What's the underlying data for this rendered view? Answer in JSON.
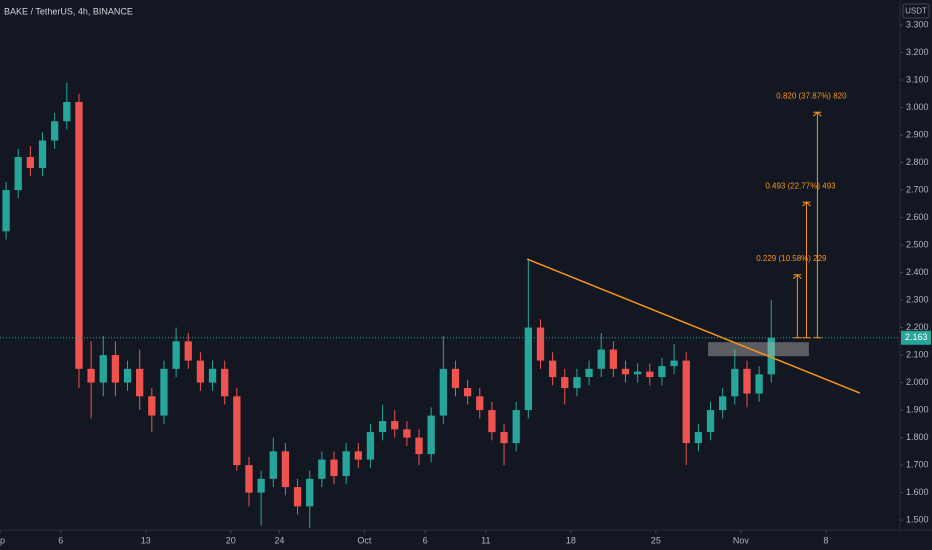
{
  "chart_data": {
    "type": "candlestick",
    "title": "BAKE / TetherUS, 4h, BINANCE",
    "currency": "USDT",
    "up_color": "#26a69a",
    "down_color": "#ef5350",
    "grid": false,
    "x": [
      0.5,
      1.5,
      2.5,
      3.5,
      4.5,
      5.5,
      6.5,
      7.5,
      8.5,
      9.5,
      10.5,
      11.5,
      12.5,
      13.5,
      14.5,
      15.5,
      16.5,
      17.5,
      18.5,
      19.5,
      20.5,
      21.5,
      22.5,
      23.5,
      24.5,
      25.5,
      26.5,
      27.5,
      28.5,
      29.5,
      30.5,
      31.5,
      32.5,
      33.5,
      34.5,
      35.5,
      36.5,
      37.5,
      38.5,
      39.5,
      40.5,
      41.5,
      42.5,
      43.5,
      44.5,
      45.5,
      46.5,
      47.5,
      48.5,
      49.5,
      50.5,
      51.5,
      52.5,
      53.5,
      54.5,
      55.5,
      56.5,
      57.5,
      58.5,
      59.5,
      60.5,
      61.5,
      62.5,
      63.5
    ],
    "open": [
      2.55,
      2.7,
      2.82,
      2.78,
      2.88,
      2.95,
      3.02,
      2.05,
      2.0,
      2.1,
      2.0,
      2.05,
      1.95,
      1.88,
      2.05,
      2.15,
      2.08,
      2.0,
      2.05,
      1.95,
      1.7,
      1.6,
      1.65,
      1.75,
      1.62,
      1.55,
      1.65,
      1.72,
      1.66,
      1.75,
      1.72,
      1.82,
      1.86,
      1.83,
      1.8,
      1.74,
      1.88,
      2.05,
      1.98,
      1.95,
      1.9,
      1.82,
      1.78,
      1.9,
      2.2,
      2.08,
      2.02,
      1.98,
      2.02,
      2.05,
      2.12,
      2.05,
      2.03,
      2.04,
      2.02,
      2.06,
      2.08,
      1.78,
      1.82,
      1.9,
      1.95,
      2.05,
      1.96,
      2.03
    ],
    "high": [
      2.73,
      2.85,
      2.86,
      2.91,
      2.98,
      3.09,
      3.05,
      2.15,
      2.17,
      2.15,
      2.08,
      2.12,
      1.98,
      2.08,
      2.2,
      2.18,
      2.11,
      2.08,
      2.08,
      1.98,
      1.73,
      1.68,
      1.8,
      1.78,
      1.65,
      1.68,
      1.75,
      1.75,
      1.78,
      1.78,
      1.85,
      1.92,
      1.9,
      1.86,
      1.83,
      1.91,
      2.17,
      2.08,
      2.01,
      1.98,
      1.93,
      1.85,
      1.93,
      2.45,
      2.23,
      2.11,
      2.05,
      2.05,
      2.08,
      2.18,
      2.15,
      2.08,
      2.07,
      2.07,
      2.09,
      2.14,
      2.11,
      1.85,
      1.93,
      1.98,
      2.12,
      2.08,
      2.06,
      2.3
    ],
    "low": [
      2.52,
      2.67,
      2.75,
      2.75,
      2.85,
      2.92,
      1.98,
      1.87,
      1.95,
      1.95,
      1.97,
      1.9,
      1.82,
      1.85,
      2.02,
      2.05,
      1.97,
      1.97,
      1.92,
      1.68,
      1.55,
      1.48,
      1.62,
      1.59,
      1.52,
      1.47,
      1.62,
      1.63,
      1.63,
      1.69,
      1.69,
      1.79,
      1.8,
      1.77,
      1.7,
      1.71,
      1.85,
      1.95,
      1.92,
      1.87,
      1.79,
      1.7,
      1.75,
      1.87,
      2.05,
      1.99,
      1.92,
      1.95,
      1.99,
      2.02,
      2.02,
      2.0,
      2.0,
      1.99,
      1.99,
      2.03,
      1.7,
      1.75,
      1.79,
      1.87,
      1.92,
      1.91,
      1.93,
      2.0
    ],
    "close": [
      2.7,
      2.82,
      2.78,
      2.88,
      2.95,
      3.02,
      2.05,
      2.0,
      2.1,
      2.0,
      2.05,
      1.95,
      1.88,
      2.05,
      2.15,
      2.08,
      2.0,
      2.05,
      1.95,
      1.7,
      1.6,
      1.65,
      1.75,
      1.62,
      1.55,
      1.65,
      1.72,
      1.66,
      1.75,
      1.72,
      1.82,
      1.86,
      1.83,
      1.8,
      1.74,
      1.88,
      2.05,
      1.98,
      1.95,
      1.9,
      1.82,
      1.78,
      1.9,
      2.2,
      2.08,
      2.02,
      1.98,
      2.02,
      2.05,
      2.12,
      2.05,
      2.03,
      2.04,
      2.02,
      2.06,
      2.08,
      1.78,
      1.82,
      1.9,
      1.95,
      2.05,
      1.96,
      2.03,
      2.163
    ],
    "xlim": [
      0,
      74.1
    ],
    "xticks": [
      {
        "value": 0,
        "label": "p"
      },
      {
        "value": 5,
        "label": "6"
      },
      {
        "value": 12,
        "label": "13"
      },
      {
        "value": 19,
        "label": "20"
      },
      {
        "value": 23,
        "label": "24"
      },
      {
        "value": 30,
        "label": "Oct"
      },
      {
        "value": 35,
        "label": "6"
      },
      {
        "value": 40,
        "label": "11"
      },
      {
        "value": 47,
        "label": "18"
      },
      {
        "value": 54,
        "label": "25"
      },
      {
        "value": 61,
        "label": "Nov"
      },
      {
        "value": 68,
        "label": "8"
      }
    ],
    "ylim": [
      1.464,
      3.391
    ],
    "yticks": [
      {
        "value": 1.5,
        "label": "1.500"
      },
      {
        "value": 1.6,
        "label": "1.600"
      },
      {
        "value": 1.7,
        "label": "1.700"
      },
      {
        "value": 1.8,
        "label": "1.800"
      },
      {
        "value": 1.9,
        "label": "1.900"
      },
      {
        "value": 2.0,
        "label": "2.000"
      },
      {
        "value": 2.1,
        "label": "2.100"
      },
      {
        "value": 2.2,
        "label": "2.200"
      },
      {
        "value": 2.3,
        "label": "2.300"
      },
      {
        "value": 2.4,
        "label": "2.400"
      },
      {
        "value": 2.5,
        "label": "2.500"
      },
      {
        "value": 2.6,
        "label": "2.600"
      },
      {
        "value": 2.7,
        "label": "2.700"
      },
      {
        "value": 2.8,
        "label": "2.800"
      },
      {
        "value": 2.9,
        "label": "2.900"
      },
      {
        "value": 3.0,
        "label": "3.000"
      },
      {
        "value": 3.1,
        "label": "3.100"
      },
      {
        "value": 3.2,
        "label": "3.200"
      },
      {
        "value": 3.3,
        "label": "3.300"
      }
    ],
    "last_price": {
      "value": 2.163,
      "label": "2.163",
      "color": "#26a69a"
    },
    "trendline": {
      "x": [
        43.4,
        70.8
      ],
      "y": [
        2.449,
        1.962
      ],
      "color": "#f7931a"
    },
    "zone": {
      "x": [
        58.3,
        66.6
      ],
      "y": [
        2.096,
        2.147
      ]
    },
    "target_color": "#f7931a",
    "targets": [
      {
        "label": "0.229 (10.58%) 229",
        "x": 65.65,
        "from": 2.163,
        "to": 2.392
      },
      {
        "label": "0.493 (22.77%) 493",
        "x": 66.4,
        "from": 2.163,
        "to": 2.656
      },
      {
        "label": "0.820 (37.87%) 820",
        "x": 67.3,
        "from": 2.163,
        "to": 2.983
      }
    ]
  }
}
